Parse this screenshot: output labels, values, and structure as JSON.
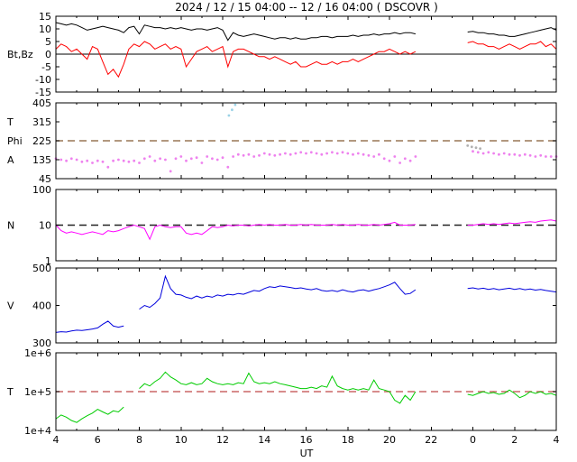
{
  "figure": {
    "title": "2024 / 12 / 15 04:00 -- 12 / 16 04:00 ( DSCOVR )",
    "x_axis_label": "UT"
  },
  "chart_data": {
    "type": "line",
    "title": "2024 / 12 / 15 04:00 -- 12 / 16 04:00 ( DSCOVR )",
    "xlabel": "UT",
    "x_axis": {
      "range_hours": [
        4,
        28
      ],
      "tick_values": [
        4,
        6,
        8,
        10,
        12,
        14,
        16,
        18,
        20,
        22,
        24,
        26,
        28
      ],
      "tick_labels": [
        "4",
        "6",
        "8",
        "10",
        "12",
        "14",
        "16",
        "18",
        "20",
        "22",
        "0",
        "2",
        "4"
      ]
    },
    "data_gap_hours": [
      21.5,
      23.75
    ],
    "x_hours": [
      4,
      4.25,
      4.5,
      4.75,
      5,
      5.25,
      5.5,
      5.75,
      6,
      6.25,
      6.5,
      6.75,
      7,
      7.25,
      7.5,
      7.75,
      8,
      8.25,
      8.5,
      8.75,
      9,
      9.25,
      9.5,
      9.75,
      10,
      10.25,
      10.5,
      10.75,
      11,
      11.25,
      11.5,
      11.75,
      12,
      12.25,
      12.5,
      12.75,
      13,
      13.25,
      13.5,
      13.75,
      14,
      14.25,
      14.5,
      14.75,
      15,
      15.25,
      15.5,
      15.75,
      16,
      16.25,
      16.5,
      16.75,
      17,
      17.25,
      17.5,
      17.75,
      18,
      18.25,
      18.5,
      18.75,
      19,
      19.25,
      19.5,
      19.75,
      20,
      20.25,
      20.5,
      20.75,
      21,
      21.25,
      21.5,
      21.75,
      22,
      22.25,
      22.5,
      22.75,
      23,
      23.25,
      23.5,
      23.75,
      24,
      24.25,
      24.5,
      24.75,
      25,
      25.25,
      25.5,
      25.75,
      26,
      26.25,
      26.5,
      26.75,
      27,
      27.25,
      27.5,
      27.75,
      28
    ],
    "panels": [
      {
        "id": "bt-bz",
        "scale": "linear",
        "ylim": [
          -15,
          15
        ],
        "ytick_values": [
          15,
          10,
          5,
          0,
          -5,
          -10,
          -15
        ],
        "ytick_labels": [
          "15",
          "10",
          "5",
          "0",
          "-5",
          "-10",
          "-15"
        ],
        "left_labels": [
          {
            "text": "Bt,Bz",
            "at": 0
          }
        ],
        "zero_line": 0,
        "series": [
          {
            "name": "Bt",
            "color": "#000000",
            "style": "line",
            "values": [
              12.5,
              12,
              11.5,
              12,
              11.5,
              10.5,
              9.5,
              10,
              10.5,
              11,
              10.5,
              10,
              9.5,
              8.5,
              10.5,
              11,
              8,
              11.5,
              11,
              10.5,
              10.5,
              10,
              10.5,
              10,
              10.5,
              10,
              9.5,
              10,
              10,
              9.5,
              10,
              10.5,
              9.5,
              5.5,
              8.5,
              7.5,
              7,
              7.5,
              8,
              7.5,
              7,
              6.5,
              6,
              6.5,
              6.5,
              6,
              6.5,
              6,
              6,
              6.5,
              6.5,
              7,
              7,
              6.5,
              7,
              7,
              7,
              7.5,
              7,
              7.5,
              7.5,
              8,
              7.5,
              8,
              8,
              8.5,
              8,
              8.5,
              8.5,
              8,
              null,
              null,
              null,
              null,
              null,
              null,
              null,
              null,
              null,
              8.75,
              9,
              8.5,
              8.5,
              8,
              8,
              7.5,
              7.5,
              7,
              7,
              7.5,
              8,
              8.5,
              9,
              9.5,
              10,
              10.5,
              9.5
            ]
          },
          {
            "name": "Bz",
            "color": "#ff0000",
            "style": "line",
            "values": [
              2,
              4,
              3,
              1,
              2,
              0,
              -2,
              3,
              2,
              -3,
              -8,
              -6,
              -9,
              -4,
              2,
              4,
              3,
              5,
              4,
              2,
              3,
              4,
              2,
              3,
              2,
              -5,
              -2,
              1,
              2,
              3,
              1,
              2,
              3,
              -5,
              1,
              2,
              2,
              1,
              0,
              -1,
              -1,
              -2,
              -1,
              -2,
              -3,
              -4,
              -3,
              -5,
              -5,
              -4,
              -3,
              -4,
              -4,
              -3,
              -4,
              -3,
              -3,
              -2,
              -3,
              -2,
              -1,
              0,
              1,
              1,
              2,
              1,
              0,
              1,
              0,
              1,
              null,
              null,
              null,
              null,
              null,
              null,
              null,
              null,
              null,
              4.5,
              5,
              4,
              4,
              3,
              3,
              2,
              3,
              4,
              3,
              2,
              3,
              4,
              4,
              5,
              3,
              4,
              2
            ]
          }
        ]
      },
      {
        "id": "phi",
        "scale": "linear",
        "ylim": [
          45,
          405
        ],
        "ytick_values": [
          405,
          315,
          225,
          135,
          45
        ],
        "ytick_labels": [
          "405",
          "315",
          "225",
          "135",
          "45"
        ],
        "left_labels": [
          {
            "text": "T",
            "at": 315
          },
          {
            "text": "Phi",
            "at": 225
          },
          {
            "text": "A",
            "at": 135
          }
        ],
        "ref_lines": [
          {
            "value": 225,
            "color": "#997755"
          }
        ],
        "series": [
          {
            "name": "Phi",
            "color": "#ee82ee",
            "style": "dots",
            "values": [
              140,
              135,
              130,
              140,
              135,
              125,
              130,
              120,
              130,
              125,
              100,
              130,
              135,
              130,
              125,
              130,
              120,
              140,
              150,
              130,
              140,
              135,
              80,
              140,
              150,
              130,
              140,
              145,
              120,
              150,
              140,
              135,
              145,
              100,
              150,
              160,
              155,
              160,
              150,
              155,
              165,
              160,
              155,
              160,
              165,
              160,
              165,
              170,
              165,
              170,
              165,
              160,
              165,
              170,
              165,
              170,
              165,
              160,
              165,
              160,
              155,
              150,
              160,
              140,
              130,
              150,
              120,
              140,
              130,
              150,
              null,
              null,
              null,
              null,
              null,
              null,
              null,
              null,
              null,
              null,
              175,
              170,
              165,
              170,
              165,
              160,
              165,
              160,
              160,
              155,
              160,
              155,
              150,
              155,
              150,
              150,
              150
            ]
          },
          {
            "name": "Phi-high",
            "color": "#9ad2e6",
            "style": "dots",
            "x": [
              12.3,
              12.45,
              12.6
            ],
            "values": [
              345,
              372,
              396
            ]
          },
          {
            "name": "Phi-gray",
            "color": "#b0b0b0",
            "style": "dots",
            "x": [
              23.75,
              23.95,
              24.15,
              24.35
            ],
            "values": [
              202,
              196,
              192,
              188
            ]
          }
        ]
      },
      {
        "id": "density",
        "scale": "log",
        "ylim": [
          1,
          100
        ],
        "ytick_values": [
          100,
          10,
          1
        ],
        "ytick_labels": [
          "100",
          "10",
          "1"
        ],
        "left_labels": [
          {
            "text": "N",
            "at": 10
          }
        ],
        "ref_lines": [
          {
            "value": 10,
            "color": "#222222"
          }
        ],
        "series": [
          {
            "name": "N",
            "color": "#ff00ff",
            "style": "line",
            "values": [
              10,
              7,
              6,
              6.5,
              6,
              5.5,
              6,
              6.5,
              6,
              5.5,
              7,
              6.5,
              7,
              8,
              9,
              10,
              9,
              8,
              4,
              9,
              10,
              9,
              8.5,
              9,
              9,
              6,
              5.5,
              6,
              5.5,
              7,
              9,
              8.5,
              9,
              10,
              9.5,
              10,
              10,
              9.5,
              10,
              10.5,
              10,
              10.5,
              10,
              10,
              10.5,
              10,
              10,
              10.5,
              10,
              10.5,
              10,
              10,
              10,
              10.5,
              10,
              10.5,
              10,
              10,
              10.5,
              10,
              10,
              10.5,
              10,
              10.5,
              11,
              12,
              10,
              10,
              10,
              10.5,
              null,
              null,
              null,
              null,
              null,
              null,
              null,
              null,
              null,
              10,
              10,
              10.5,
              11,
              10.5,
              11,
              10.5,
              11,
              11.5,
              11,
              11.5,
              12,
              12.5,
              12,
              13,
              13.5,
              14,
              13
            ]
          }
        ]
      },
      {
        "id": "speed",
        "scale": "linear",
        "ylim": [
          300,
          500
        ],
        "ytick_values": [
          500,
          400,
          300
        ],
        "ytick_labels": [
          "500",
          "400",
          "300"
        ],
        "left_labels": [
          {
            "text": "V",
            "at": 400
          }
        ],
        "series": [
          {
            "name": "V",
            "color": "#0000dd",
            "style": "line",
            "values": [
              328,
              330,
              329,
              332,
              334,
              333,
              335,
              337,
              340,
              350,
              358,
              345,
              342,
              345,
              null,
              null,
              390,
              400,
              395,
              405,
              420,
              478,
              445,
              430,
              428,
              422,
              418,
              425,
              420,
              425,
              422,
              428,
              425,
              430,
              428,
              432,
              430,
              435,
              440,
              438,
              445,
              450,
              448,
              452,
              450,
              448,
              445,
              447,
              444,
              442,
              445,
              440,
              438,
              440,
              437,
              442,
              438,
              436,
              440,
              442,
              438,
              442,
              445,
              450,
              455,
              462,
              445,
              430,
              432,
              442,
              null,
              null,
              null,
              null,
              null,
              null,
              null,
              null,
              null,
              445,
              447,
              444,
              446,
              443,
              445,
              442,
              444,
              446,
              443,
              445,
              442,
              444,
              441,
              443,
              440,
              438,
              436
            ]
          }
        ]
      },
      {
        "id": "temperature",
        "scale": "log",
        "ylim": [
          10000,
          1000000
        ],
        "ytick_values": [
          1000000,
          100000,
          10000
        ],
        "ytick_labels": [
          "1e+6",
          "1e+5",
          "1e+4"
        ],
        "left_labels": [
          {
            "text": "T",
            "at": 100000
          }
        ],
        "ref_lines": [
          {
            "value": 100000,
            "color": "#cc6666"
          }
        ],
        "series": [
          {
            "name": "T",
            "color": "#00cc00",
            "style": "line",
            "values": [
              20000,
              25000,
              22000,
              18000,
              16000,
              20000,
              24000,
              28000,
              35000,
              30000,
              26000,
              32000,
              30000,
              40000,
              null,
              null,
              120000,
              160000,
              140000,
              180000,
              220000,
              320000,
              240000,
              200000,
              160000,
              150000,
              170000,
              150000,
              160000,
              220000,
              180000,
              160000,
              150000,
              160000,
              150000,
              170000,
              160000,
              300000,
              180000,
              160000,
              170000,
              160000,
              180000,
              160000,
              150000,
              140000,
              130000,
              120000,
              120000,
              130000,
              120000,
              140000,
              130000,
              250000,
              140000,
              120000,
              110000,
              120000,
              110000,
              120000,
              110000,
              200000,
              120000,
              110000,
              100000,
              60000,
              50000,
              80000,
              60000,
              100000,
              null,
              null,
              null,
              null,
              null,
              null,
              null,
              null,
              null,
              85000,
              80000,
              90000,
              100000,
              90000,
              95000,
              85000,
              90000,
              110000,
              90000,
              70000,
              80000,
              100000,
              90000,
              100000,
              85000,
              90000,
              80000
            ]
          }
        ]
      }
    ]
  }
}
